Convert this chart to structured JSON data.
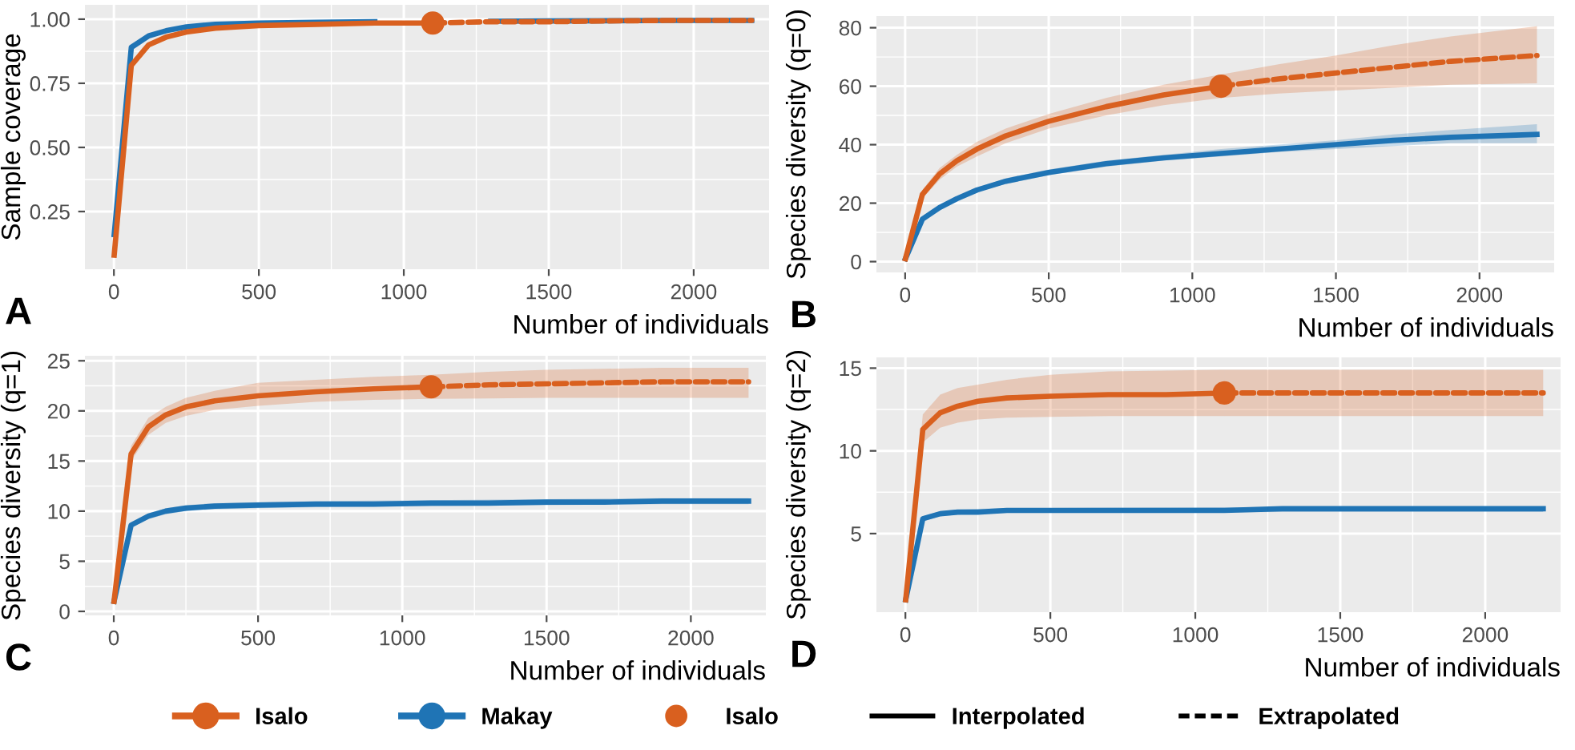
{
  "chart_data": [
    {
      "type": "line",
      "title": "A",
      "xlabel": "Number of individuals",
      "ylabel": "Sample coverage",
      "xlim": [
        -100,
        2260
      ],
      "ylim": [
        0.025,
        1.056
      ],
      "xticks": [
        0,
        500,
        1000,
        1500,
        2000
      ],
      "yticks": [
        {
          "value": 0.25,
          "label": "0.25"
        },
        {
          "value": 0.5,
          "label": "0.50"
        },
        {
          "value": 0.75,
          "label": "0.75"
        },
        {
          "value": 1.0,
          "label": "1.00"
        }
      ],
      "grid": true,
      "legend": "bottom",
      "annotations": [
        "Interpolated",
        "Extrapolated"
      ],
      "series": [
        {
          "name": "Isalo",
          "color": "#d9601f",
          "line_style": "solid",
          "x": [
            1,
            60,
            120,
            180,
            250,
            350,
            500,
            700,
            900,
            1100
          ],
          "values": [
            0.08,
            0.82,
            0.9,
            0.93,
            0.95,
            0.965,
            0.975,
            0.98,
            0.985,
            0.985
          ]
        },
        {
          "color": "#d9601f",
          "line_style": "dashed",
          "x": [
            1100,
            1300,
            1500,
            1700,
            1900,
            2200
          ],
          "values": [
            0.985,
            0.99,
            0.99,
            0.993,
            0.995,
            0.995
          ]
        },
        {
          "name": "Makay",
          "color": "#1f74b5",
          "line_style": "solid",
          "x": [
            1,
            60,
            120,
            180,
            250,
            350,
            500,
            700,
            900,
            1100,
            1300,
            1500,
            1700,
            1900,
            2200
          ],
          "values": [
            0.16,
            0.89,
            0.935,
            0.955,
            0.97,
            0.98,
            0.985,
            0.988,
            0.99,
            null,
            0.992,
            0.993,
            0.994,
            0.995,
            0.995
          ]
        },
        {
          "name": "Isalo",
          "type": "scatter",
          "marker": "circle",
          "color": "#d9601f",
          "x": [
            1100
          ],
          "values": [
            0.985
          ]
        }
      ]
    },
    {
      "type": "line",
      "title": "B",
      "xlabel": "Number of individuals",
      "ylabel": "Species diversity (q=0)",
      "xlim": [
        -100,
        2260
      ],
      "ylim": [
        -3.7,
        84
      ],
      "xticks": [
        0,
        500,
        1000,
        1500,
        2000
      ],
      "yticks": [
        0,
        20,
        40,
        60,
        80
      ],
      "grid": true,
      "series": [
        {
          "color": "#d9601f",
          "line_style": "solid",
          "x": [
            1,
            60,
            120,
            180,
            250,
            350,
            500,
            700,
            900,
            1100
          ],
          "values": [
            1,
            23,
            30,
            34.5,
            38.5,
            43,
            48,
            53,
            57,
            60
          ],
          "lower": [
            1,
            21.5,
            28,
            32.5,
            36,
            40.5,
            45.5,
            50,
            53.5,
            56
          ],
          "upper": [
            1,
            24.5,
            32,
            36.5,
            41,
            45.5,
            50.5,
            56,
            60.5,
            64
          ]
        },
        {
          "color": "#d9601f",
          "line_style": "dashed",
          "x": [
            1100,
            1300,
            1500,
            1700,
            1900,
            2200
          ],
          "values": [
            60,
            62.5,
            64.5,
            66.5,
            68.5,
            70.5
          ],
          "lower": [
            56,
            57.5,
            58.5,
            59.5,
            60.5,
            61
          ],
          "upper": [
            64,
            67.5,
            70.5,
            74,
            77,
            80.5
          ]
        },
        {
          "color": "#1f74b5",
          "line_style": "solid",
          "x": [
            1,
            60,
            120,
            180,
            250,
            350,
            500,
            700,
            900,
            1100,
            1300,
            1500,
            1700,
            1900,
            2200
          ],
          "values": [
            1,
            14.5,
            18.5,
            21.5,
            24.5,
            27.5,
            30.5,
            33.5,
            35.5,
            37,
            38.5,
            40,
            41.5,
            42.5,
            43.5
          ],
          "lower": [
            1,
            14,
            18,
            21,
            24,
            26.5,
            29.5,
            32.5,
            34.5,
            36,
            37.5,
            38.5,
            39.5,
            40.5,
            40.5
          ],
          "upper": [
            1,
            15,
            19,
            22,
            25,
            28.5,
            31.5,
            34.5,
            36.5,
            38.5,
            40,
            41.5,
            43.5,
            45,
            47
          ]
        },
        {
          "type": "scatter",
          "marker": "circle",
          "color": "#d9601f",
          "x": [
            1100
          ],
          "values": [
            60
          ]
        }
      ]
    },
    {
      "type": "line",
      "title": "C",
      "xlabel": "Number of individuals",
      "ylabel": "Species diversity (q=1)",
      "xlim": [
        -100,
        2260
      ],
      "ylim": [
        -0.4,
        25.5
      ],
      "xticks": [
        0,
        500,
        1000,
        1500,
        2000
      ],
      "yticks": [
        0,
        5,
        10,
        15,
        20,
        25
      ],
      "grid": true,
      "series": [
        {
          "color": "#d9601f",
          "line_style": "solid",
          "x": [
            1,
            60,
            120,
            180,
            250,
            350,
            500,
            700,
            900,
            1100
          ],
          "values": [
            1,
            15.7,
            18.4,
            19.6,
            20.4,
            21,
            21.5,
            21.9,
            22.2,
            22.4
          ],
          "lower": [
            1,
            15,
            17.6,
            18.8,
            19.5,
            20.1,
            20.5,
            20.9,
            21.1,
            21.2
          ],
          "upper": [
            1,
            16.5,
            19.3,
            20.4,
            21.3,
            22,
            22.8,
            23.1,
            23.4,
            23.6
          ]
        },
        {
          "color": "#d9601f",
          "line_style": "dashed",
          "x": [
            1100,
            1300,
            1500,
            1700,
            1900,
            2200
          ],
          "values": [
            22.4,
            22.6,
            22.7,
            22.8,
            22.9,
            22.9
          ],
          "lower": [
            21.2,
            21.25,
            21.3,
            21.3,
            21.3,
            21.3
          ],
          "upper": [
            23.6,
            23.9,
            24.1,
            24.2,
            24.3,
            24.3
          ]
        },
        {
          "color": "#1f74b5",
          "line_style": "solid",
          "x": [
            1,
            60,
            120,
            180,
            250,
            350,
            500,
            700,
            900,
            1100,
            1300,
            1500,
            1700,
            1900,
            2200
          ],
          "values": [
            1,
            8.6,
            9.5,
            10,
            10.3,
            10.5,
            10.6,
            10.7,
            10.7,
            10.8,
            10.8,
            10.9,
            10.9,
            11,
            11
          ],
          "lower": [
            1,
            8.4,
            9.2,
            9.7,
            10,
            10.2,
            10.3,
            10.4,
            10.45,
            10.5,
            10.55,
            10.6,
            10.65,
            10.7,
            10.7
          ],
          "upper": [
            1,
            8.8,
            9.8,
            10.3,
            10.6,
            10.8,
            10.9,
            11,
            11.05,
            11.1,
            11.15,
            11.2,
            11.25,
            11.3,
            11.3
          ]
        },
        {
          "type": "scatter",
          "marker": "circle",
          "color": "#d9601f",
          "x": [
            1100
          ],
          "values": [
            22.4
          ]
        }
      ]
    },
    {
      "type": "line",
      "title": "D",
      "xlabel": "Number of individuals",
      "ylabel": "Species diversity (q=2)",
      "xlim": [
        -100,
        2260
      ],
      "ylim": [
        0.25,
        15.65
      ],
      "xticks": [
        0,
        500,
        1000,
        1500,
        2000
      ],
      "yticks": [
        5,
        10,
        15
      ],
      "grid": true,
      "series": [
        {
          "color": "#d9601f",
          "line_style": "solid",
          "x": [
            1,
            60,
            120,
            180,
            250,
            350,
            500,
            700,
            900,
            1100
          ],
          "values": [
            1,
            11.3,
            12.3,
            12.7,
            13,
            13.2,
            13.3,
            13.4,
            13.4,
            13.5
          ],
          "lower": [
            1,
            10.5,
            11.4,
            11.7,
            11.9,
            12,
            12.05,
            12.1,
            12.1,
            12.1
          ],
          "upper": [
            1,
            12.2,
            13.4,
            13.8,
            14,
            14.3,
            14.6,
            14.8,
            14.85,
            14.9
          ]
        },
        {
          "color": "#d9601f",
          "line_style": "dashed",
          "x": [
            1100,
            1300,
            1500,
            1700,
            1900,
            2200
          ],
          "values": [
            13.5,
            13.5,
            13.5,
            13.5,
            13.5,
            13.5
          ],
          "lower": [
            12.1,
            12.1,
            12.1,
            12.1,
            12.1,
            12.1
          ],
          "upper": [
            14.9,
            14.9,
            14.9,
            14.9,
            14.9,
            14.9
          ]
        },
        {
          "color": "#1f74b5",
          "line_style": "solid",
          "x": [
            1,
            60,
            120,
            180,
            250,
            350,
            500,
            700,
            900,
            1100,
            1300,
            1500,
            1700,
            1900,
            2200
          ],
          "values": [
            1,
            5.9,
            6.2,
            6.3,
            6.3,
            6.4,
            6.4,
            6.4,
            6.4,
            6.4,
            6.5,
            6.5,
            6.5,
            6.5,
            6.5
          ],
          "lower": [
            1,
            5.75,
            6.05,
            6.15,
            6.2,
            6.25,
            6.25,
            6.27,
            6.28,
            6.29,
            6.3,
            6.3,
            6.3,
            6.3,
            6.3
          ],
          "upper": [
            1,
            6.05,
            6.35,
            6.45,
            6.5,
            6.55,
            6.55,
            6.57,
            6.58,
            6.59,
            6.6,
            6.6,
            6.6,
            6.6,
            6.6
          ]
        },
        {
          "type": "scatter",
          "marker": "circle",
          "color": "#d9601f",
          "x": [
            1100
          ],
          "values": [
            13.5
          ]
        }
      ]
    }
  ]
}
